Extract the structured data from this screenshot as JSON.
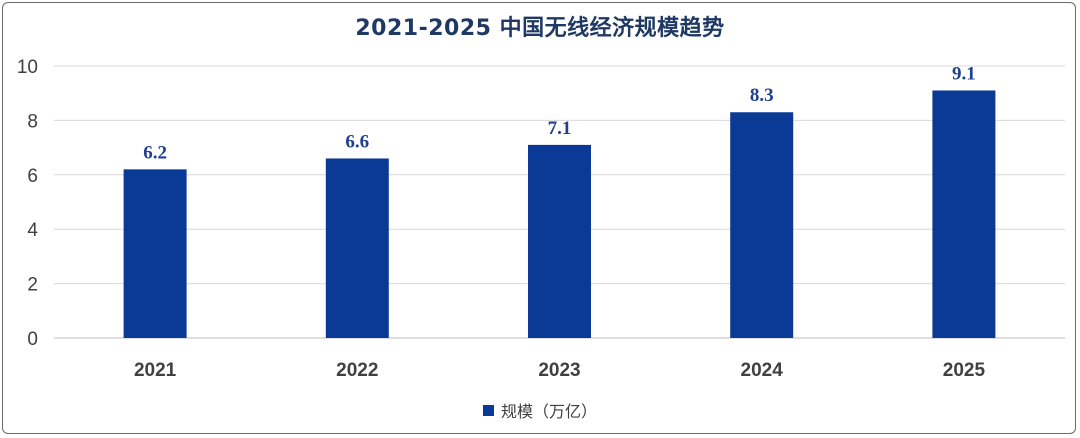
{
  "chart_data": {
    "type": "bar",
    "title": "2021-2025 中国无线经济规模趋势",
    "categories": [
      "2021",
      "2022",
      "2023",
      "2024",
      "2025"
    ],
    "series": [
      {
        "name": "规模（万亿）",
        "values": [
          6.2,
          6.6,
          7.1,
          8.3,
          9.1
        ]
      }
    ],
    "data_labels": [
      "6.2",
      "6.6",
      "7.1",
      "8.3",
      "9.1"
    ],
    "yticks": [
      "0",
      "2",
      "4",
      "6",
      "8",
      "10"
    ],
    "ylim": [
      0,
      10
    ],
    "grid": true,
    "legend_position": "bottom",
    "bar_color": "#0b3a96",
    "label_color": "#1f3f8f",
    "xlabel": "",
    "ylabel": ""
  }
}
